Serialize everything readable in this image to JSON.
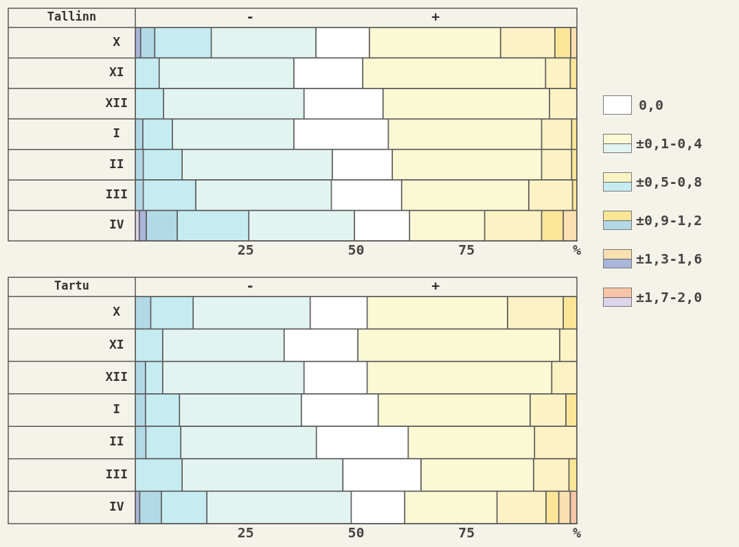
{
  "chart_data": [
    {
      "type": "bar",
      "orientation": "horizontal",
      "stacked": true,
      "title": "Tallinn",
      "annotations": [
        "-",
        "+"
      ],
      "categories": [
        "X",
        "XI",
        "XII",
        "I",
        "II",
        "III",
        "IV"
      ],
      "xlim": [
        0,
        100
      ],
      "xticks": [
        25,
        50,
        75,
        {
          "value": 100,
          "label": "%"
        }
      ],
      "legend": "right",
      "series": [
        {
          "name": "±1,7-2,0",
          "color": "#dcd4e8",
          "values": [
            0,
            0,
            0,
            0,
            0,
            0,
            0.9
          ]
        },
        {
          "name": "±1,3-1,6",
          "color": "#a9b6d9",
          "values": [
            1.2,
            0,
            0,
            0,
            0,
            0,
            1.6
          ]
        },
        {
          "name": "±0,9-1,2",
          "color": "#b4d9e6",
          "values": [
            3.2,
            0,
            0,
            1.7,
            1.8,
            1.8,
            7.0
          ]
        },
        {
          "name": "±0,5-0,8",
          "color": "#c6ecf2",
          "values": [
            12.8,
            5.4,
            6.4,
            6.7,
            8.8,
            11.9,
            16.2
          ]
        },
        {
          "name": "±0,1-0,4",
          "color": "#e2f4f0",
          "values": [
            23.7,
            30.5,
            31.8,
            27.5,
            34.0,
            30.7,
            23.9
          ]
        },
        {
          "name": "0,0",
          "color": "#ffffff",
          "values": [
            12.1,
            15.6,
            17.9,
            21.4,
            13.6,
            15.9,
            12.5
          ]
        },
        {
          "color": "#fbf8d4",
          "values": [
            29.7,
            41.4,
            37.7,
            34.7,
            33.8,
            28.8,
            17.0
          ]
        },
        {
          "color": "#fcf2c4",
          "values": [
            12.3,
            5.6,
            6.2,
            6.8,
            6.8,
            9.9,
            12.9
          ]
        },
        {
          "color": "#fbe698",
          "values": [
            3.6,
            1.5,
            0,
            1.2,
            1.2,
            1.0,
            4.9
          ]
        },
        {
          "color": "#fae0b0",
          "values": [
            1.4,
            0,
            0,
            0,
            0,
            0,
            3.1
          ]
        },
        {
          "color": "#f6c6a6",
          "values": [
            0,
            0,
            0,
            0,
            0,
            0,
            0
          ]
        }
      ]
    },
    {
      "type": "bar",
      "orientation": "horizontal",
      "stacked": true,
      "title": "Tartu",
      "annotations": [
        "-",
        "+"
      ],
      "categories": [
        "X",
        "XI",
        "XII",
        "I",
        "II",
        "III",
        "IV"
      ],
      "xlim": [
        0,
        100
      ],
      "xticks": [
        25,
        50,
        75,
        {
          "value": 100,
          "label": "%"
        }
      ],
      "series": [
        {
          "color": "#dcd4e8",
          "values": [
            0,
            0,
            0,
            0,
            0,
            0,
            0
          ]
        },
        {
          "color": "#a9b6d9",
          "values": [
            0,
            0,
            0,
            0,
            0,
            0,
            1.0
          ]
        },
        {
          "color": "#b4d9e6",
          "values": [
            3.5,
            0,
            2.3,
            2.3,
            2.4,
            0,
            4.9
          ]
        },
        {
          "color": "#c6ecf2",
          "values": [
            9.6,
            6.2,
            3.9,
            7.7,
            7.9,
            10.6,
            10.3
          ]
        },
        {
          "color": "#e2f4f0",
          "values": [
            26.5,
            27.5,
            32.0,
            27.6,
            30.7,
            36.4,
            32.7
          ]
        },
        {
          "color": "#ffffff",
          "values": [
            12.9,
            16.7,
            14.3,
            17.4,
            20.8,
            17.7,
            12.1
          ]
        },
        {
          "color": "#fbf8d4",
          "values": [
            31.8,
            45.7,
            41.8,
            34.4,
            28.6,
            25.5,
            20.9
          ]
        },
        {
          "color": "#fcf2c4",
          "values": [
            12.6,
            3.9,
            5.7,
            8.1,
            9.6,
            8.0,
            11.1
          ]
        },
        {
          "color": "#fbe698",
          "values": [
            3.1,
            0,
            0,
            2.5,
            0,
            1.8,
            2.9
          ]
        },
        {
          "color": "#fae0b0",
          "values": [
            0,
            0,
            0,
            0,
            0,
            0,
            2.6
          ]
        },
        {
          "color": "#f6c6a6",
          "values": [
            0,
            0,
            0,
            0,
            0,
            0,
            1.5
          ]
        }
      ]
    }
  ]
}
